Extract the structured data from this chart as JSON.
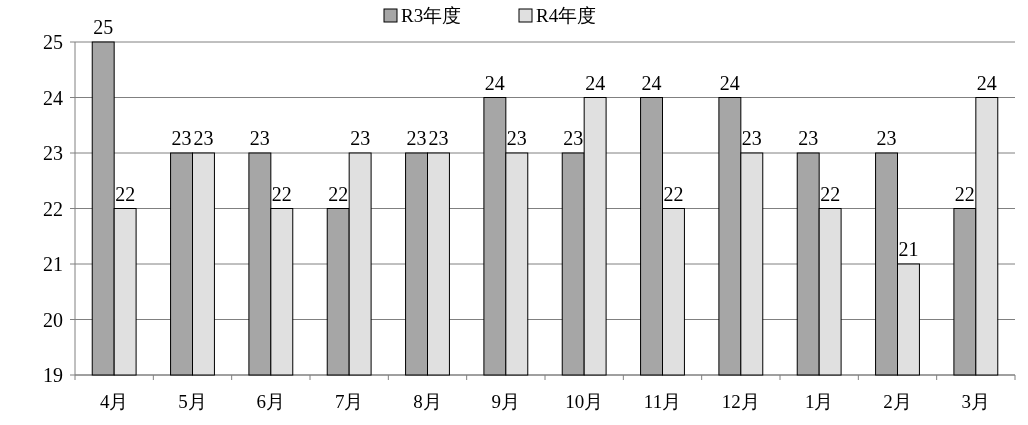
{
  "chart_data": {
    "type": "bar",
    "categories": [
      "4月",
      "5月",
      "6月",
      "7月",
      "8月",
      "9月",
      "10月",
      "11月",
      "12月",
      "1月",
      "2月",
      "3月"
    ],
    "series": [
      {
        "name": "R3年度",
        "color": "#a6a6a6",
        "values": [
          25,
          23,
          23,
          22,
          23,
          24,
          23,
          24,
          24,
          23,
          23,
          22
        ]
      },
      {
        "name": "R4年度",
        "color": "#e0e0e0",
        "values": [
          22,
          23,
          22,
          23,
          23,
          23,
          24,
          22,
          23,
          22,
          21,
          24
        ]
      }
    ],
    "ylim": [
      19,
      25
    ],
    "yticks": [
      19,
      20,
      21,
      22,
      23,
      24,
      25
    ],
    "grid": "y",
    "legend": "top",
    "data_labels": true
  }
}
